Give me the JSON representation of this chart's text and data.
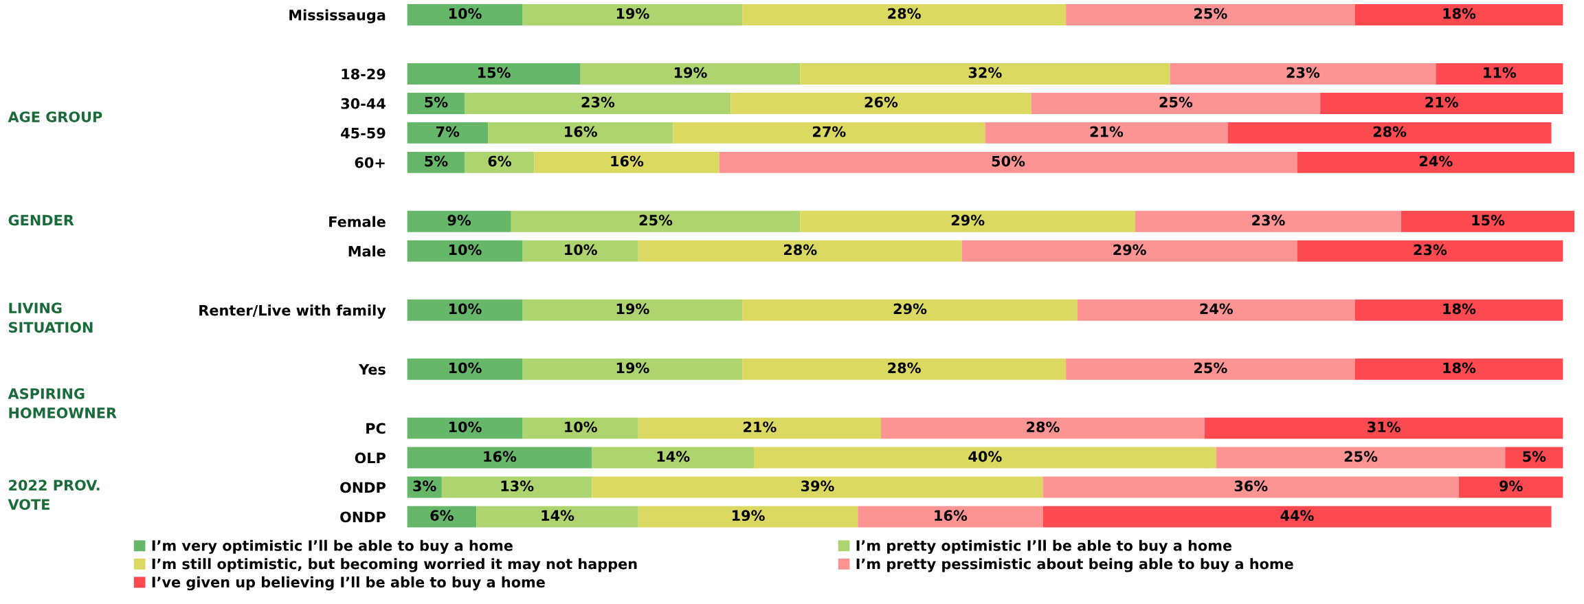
{
  "chart_data": {
    "type": "bar",
    "orientation": "horizontal",
    "stacked": true,
    "legend": "bottom",
    "grid": false,
    "tick_labels": "y",
    "categories": [
      "Mississauga",
      null,
      "18-29",
      "30-44",
      "45-59",
      "60+",
      null,
      "Female",
      "Male",
      null,
      "Renter/Live with family",
      null,
      "Yes",
      null,
      "PC",
      "OLP",
      "ONDP",
      "ONDP"
    ],
    "annotations": [
      "AGE GROUP",
      "GENDER",
      "LIVING\nSITUATION",
      "ASPIRING\nHOMEOWNER",
      "2022 PROV.\nVOTE"
    ],
    "series": [
      {
        "name": "I’m very optimistic I’ll be able to buy a home",
        "color": "#66b76a",
        "values": [
          10,
          null,
          15,
          5,
          7,
          5,
          null,
          9,
          10,
          null,
          10,
          null,
          10,
          null,
          10,
          16,
          3,
          6
        ],
        "value_labels": [
          "10%",
          null,
          "15%",
          "5%",
          "7%",
          "5%",
          null,
          "9%",
          "10%",
          null,
          "10%",
          null,
          "10%",
          null,
          "10%",
          "16%",
          "3%",
          "6%"
        ]
      },
      {
        "name": "I’m pretty optimistic I’ll be able to buy a home",
        "color": "#add46f",
        "values": [
          19,
          null,
          19,
          23,
          16,
          6,
          null,
          25,
          10,
          null,
          19,
          null,
          19,
          null,
          10,
          14,
          13,
          14
        ],
        "value_labels": [
          "19%",
          null,
          "19%",
          "23%",
          "16%",
          "6%",
          null,
          "25%",
          "10%",
          null,
          "19%",
          null,
          "19%",
          null,
          "10%",
          "14%",
          "13%",
          "14%"
        ]
      },
      {
        "name": "I’m still optimistic, but becoming worried it may not happen",
        "color": "#dbd962",
        "values": [
          28,
          null,
          32,
          26,
          27,
          16,
          null,
          29,
          28,
          null,
          29,
          null,
          28,
          null,
          21,
          40,
          39,
          19
        ],
        "value_labels": [
          "28%",
          null,
          "32%",
          "26%",
          "27%",
          "16%",
          null,
          "29%",
          "28%",
          null,
          "29%",
          null,
          "28%",
          null,
          "21%",
          "40%",
          "39%",
          "19%"
        ]
      },
      {
        "name": "I’m pretty pessimistic about being able to buy a home",
        "color": "#fc9494",
        "values": [
          25,
          null,
          23,
          25,
          21,
          50,
          null,
          23,
          29,
          null,
          24,
          null,
          25,
          null,
          28,
          25,
          36,
          16
        ],
        "value_labels": [
          "25%",
          null,
          "23%",
          "25%",
          "21%",
          "50%",
          null,
          "23%",
          "29%",
          null,
          "24%",
          null,
          "25%",
          null,
          "28%",
          "25%",
          "36%",
          "16%"
        ]
      },
      {
        "name": "I’ve given up believing I’ll be able to buy a home",
        "color": "#fd4a50",
        "values": [
          18,
          null,
          11,
          21,
          28,
          24,
          null,
          15,
          23,
          null,
          18,
          null,
          18,
          null,
          31,
          5,
          9,
          44
        ],
        "value_labels": [
          "18%",
          null,
          "11%",
          "21%",
          "28%",
          "24%",
          null,
          "15%",
          "23%",
          null,
          "18%",
          null,
          "18%",
          null,
          "31%",
          "5%",
          "9%",
          "44%"
        ]
      }
    ]
  }
}
